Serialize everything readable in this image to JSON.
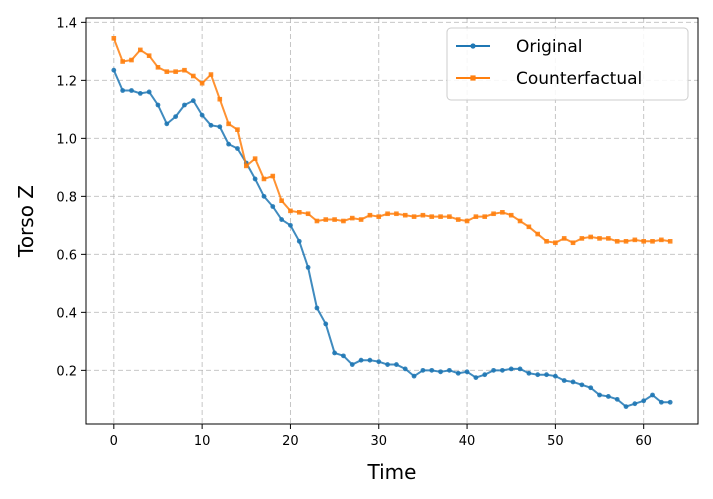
{
  "chart_data": {
    "type": "line",
    "title": "",
    "xlabel": "Time",
    "ylabel": "Torso Z",
    "xlim": [
      -3.15,
      66.15
    ],
    "ylim": [
      0.015,
      1.415
    ],
    "xticks": [
      0,
      10,
      20,
      30,
      40,
      50,
      60
    ],
    "yticks": [
      0.2,
      0.4,
      0.6,
      0.8,
      1.0,
      1.2,
      1.4
    ],
    "ytick_labels": [
      "0.2",
      "0.4",
      "0.6",
      "0.8",
      "1.0",
      "1.2",
      "1.4"
    ],
    "grid": true,
    "legend_position": "top-right",
    "x": [
      0,
      1,
      2,
      3,
      4,
      5,
      6,
      7,
      8,
      9,
      10,
      11,
      12,
      13,
      14,
      15,
      16,
      17,
      18,
      19,
      20,
      21,
      22,
      23,
      24,
      25,
      26,
      27,
      28,
      29,
      30,
      31,
      32,
      33,
      34,
      35,
      36,
      37,
      38,
      39,
      40,
      41,
      42,
      43,
      44,
      45,
      46,
      47,
      48,
      49,
      50,
      51,
      52,
      53,
      54,
      55,
      56,
      57,
      58,
      59,
      60,
      61,
      62,
      63
    ],
    "series": [
      {
        "name": "Original",
        "color": "#1f77b4",
        "marker": "circle",
        "values": [
          1.235,
          1.165,
          1.165,
          1.155,
          1.16,
          1.115,
          1.05,
          1.075,
          1.115,
          1.13,
          1.08,
          1.045,
          1.04,
          0.98,
          0.965,
          0.915,
          0.86,
          0.8,
          0.765,
          0.72,
          0.7,
          0.645,
          0.555,
          0.415,
          0.36,
          0.26,
          0.25,
          0.22,
          0.235,
          0.235,
          0.23,
          0.22,
          0.22,
          0.205,
          0.18,
          0.2,
          0.2,
          0.195,
          0.2,
          0.19,
          0.195,
          0.175,
          0.185,
          0.2,
          0.2,
          0.205,
          0.205,
          0.19,
          0.185,
          0.185,
          0.18,
          0.165,
          0.16,
          0.15,
          0.14,
          0.115,
          0.11,
          0.1,
          0.075,
          0.085,
          0.095,
          0.115,
          0.09,
          0.09
        ]
      },
      {
        "name": "Counterfactual",
        "color": "#ff7f0e",
        "marker": "square",
        "values": [
          1.345,
          1.265,
          1.27,
          1.305,
          1.285,
          1.245,
          1.23,
          1.23,
          1.235,
          1.215,
          1.19,
          1.22,
          1.135,
          1.05,
          1.03,
          0.905,
          0.93,
          0.86,
          0.87,
          0.785,
          0.75,
          0.745,
          0.74,
          0.715,
          0.72,
          0.72,
          0.715,
          0.725,
          0.72,
          0.735,
          0.73,
          0.74,
          0.74,
          0.735,
          0.73,
          0.735,
          0.73,
          0.73,
          0.73,
          0.72,
          0.715,
          0.73,
          0.73,
          0.74,
          0.745,
          0.735,
          0.715,
          0.695,
          0.67,
          0.645,
          0.64,
          0.655,
          0.64,
          0.655,
          0.66,
          0.655,
          0.655,
          0.645,
          0.645,
          0.65,
          0.645,
          0.645,
          0.65,
          0.645
        ]
      }
    ]
  }
}
